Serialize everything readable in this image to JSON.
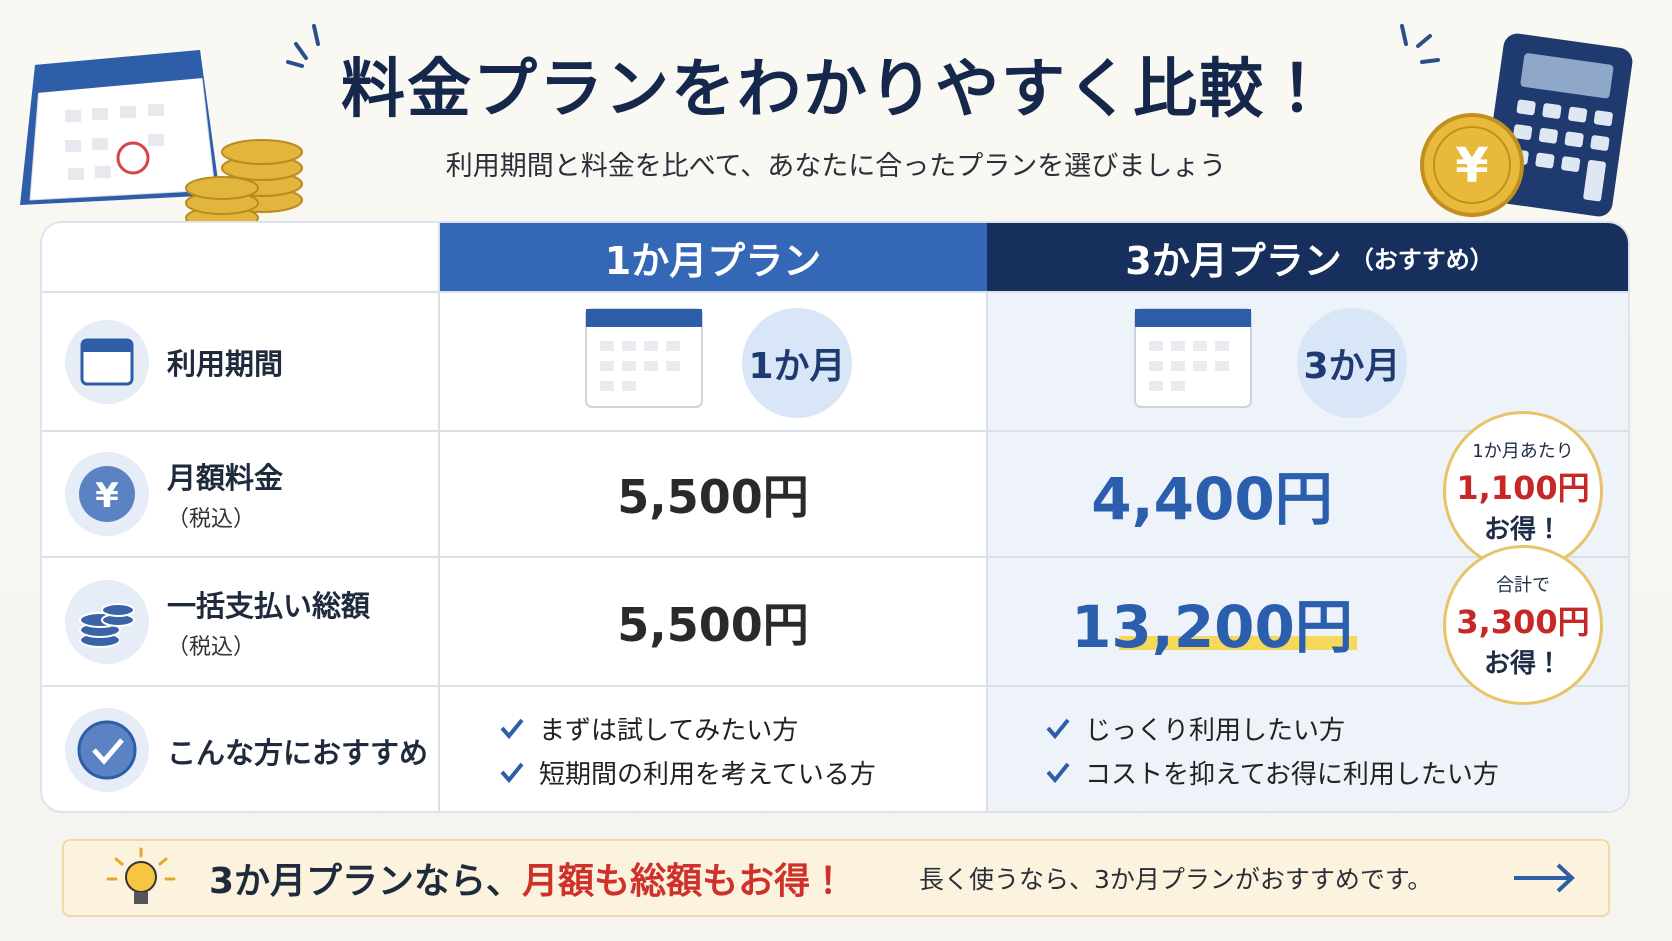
{
  "header": {
    "title": "料金プランをわかりやすく比較！",
    "subtitle": "利用期間と料金を比べて、あなたに合ったプランを選びましょう"
  },
  "table": {
    "columns": [
      "1か月プラン",
      "3か月プラン"
    ],
    "recommended_tag": "（おすすめ）",
    "rows": [
      {
        "label": "利用期間",
        "cells": [
          "1か月",
          "3か月"
        ]
      },
      {
        "label": "月額料金",
        "note": "（税込）",
        "cells": [
          "5,500円",
          "4,400円"
        ],
        "callout": [
          "1か月あたり",
          "1,100円",
          "お得！"
        ]
      },
      {
        "label": "一括支払い総額",
        "note": "（税込）",
        "cells": [
          "5,500円",
          "13,200円"
        ],
        "callout": [
          "合計で",
          "3,300円",
          "お得！"
        ]
      },
      {
        "label": "こんな方におすすめ",
        "cells": [
          [
            "まずは試してみたい方",
            "短期間の利用を考えている方"
          ],
          [
            "じっくり利用したい方",
            "コストを抑えてお得に利用したい方"
          ]
        ]
      }
    ]
  },
  "footer": {
    "lead": "3か月プランなら、",
    "highlight": "月額も総額もお得！",
    "note": "長く使うなら、3か月プランがおすすめです。"
  }
}
